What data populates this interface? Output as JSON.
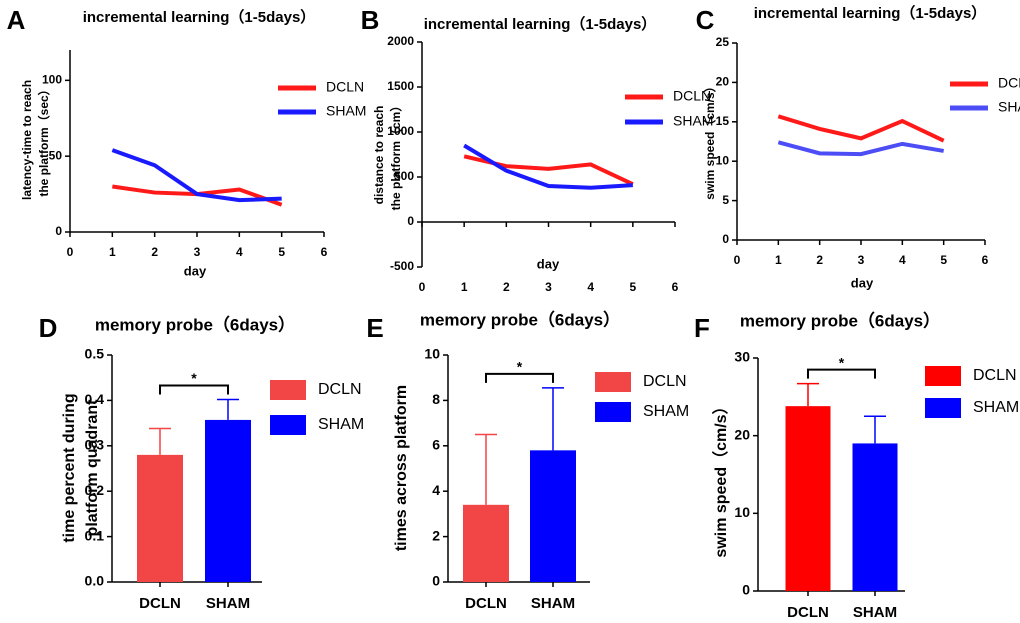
{
  "chart_data": [
    {
      "panel": "A",
      "type": "line",
      "title": "incremental learning（1-5days）",
      "xlabel": "day",
      "ylabel": [
        "latency-time to reach",
        "the platform（sec）"
      ],
      "x": [
        1,
        2,
        3,
        4,
        5
      ],
      "xlim": [
        0,
        6
      ],
      "xticks": [
        0,
        1,
        2,
        3,
        4,
        5,
        6
      ],
      "ylim": [
        0,
        120
      ],
      "yticks": [
        0,
        50,
        100
      ],
      "series": [
        {
          "name": "DCLN",
          "color": "#ff1a1a",
          "values": [
            30,
            26,
            25,
            28,
            18
          ]
        },
        {
          "name": "SHAM",
          "color": "#1a1aff",
          "values": [
            54,
            44,
            25,
            21,
            22
          ]
        }
      ]
    },
    {
      "panel": "B",
      "type": "line",
      "title": "incremental learning（1-5days）",
      "xlabel": "day",
      "ylabel": [
        "distance to reach",
        "the platform（cm）"
      ],
      "x": [
        1,
        2,
        3,
        4,
        5
      ],
      "xlim": [
        0,
        6
      ],
      "xticks": [
        0,
        1,
        2,
        3,
        4,
        5,
        6
      ],
      "ylim": [
        -500,
        2000
      ],
      "yticks": [
        -500,
        0,
        500,
        1000,
        1500,
        2000
      ],
      "series": [
        {
          "name": "DCLN",
          "color": "#ff1a1a",
          "values": [
            730,
            620,
            590,
            640,
            420
          ]
        },
        {
          "name": "SHAM",
          "color": "#1a1aff",
          "values": [
            850,
            570,
            400,
            380,
            410
          ]
        }
      ]
    },
    {
      "panel": "C",
      "type": "line",
      "title": "incremental learning（1-5days）",
      "xlabel": "day",
      "ylabel": [
        "swim speed（cm/s）"
      ],
      "x": [
        1,
        2,
        3,
        4,
        5
      ],
      "xlim": [
        0,
        6
      ],
      "xticks": [
        0,
        1,
        2,
        3,
        4,
        5,
        6
      ],
      "ylim": [
        0,
        25
      ],
      "yticks": [
        0,
        5,
        10,
        15,
        20,
        25
      ],
      "series": [
        {
          "name": "DCLN",
          "color": "#ff1a1a",
          "values": [
            15.7,
            14.1,
            12.9,
            15.1,
            12.6
          ]
        },
        {
          "name": "SHAM",
          "color": "#4d4df5",
          "values": [
            12.4,
            11.0,
            10.9,
            12.2,
            11.3
          ]
        }
      ]
    },
    {
      "panel": "D",
      "type": "bar",
      "title": "memory probe（6days）",
      "ylabel": [
        "time percent during",
        "platform quadrant"
      ],
      "categories": [
        "DCLN",
        "SHAM"
      ],
      "values": [
        0.28,
        0.357
      ],
      "errors": [
        0.058,
        0.045
      ],
      "colors": [
        "#f24545",
        "#0000ff"
      ],
      "annotation": "*",
      "ylim": [
        0,
        0.5
      ],
      "yticks": [
        {
          "value": 0,
          "label": "0.0"
        },
        0.1,
        0.2,
        0.3,
        0.4,
        0.5
      ]
    },
    {
      "panel": "E",
      "type": "bar",
      "title": "memory probe（6days）",
      "ylabel": [
        "times across platform"
      ],
      "categories": [
        "DCLN",
        "SHAM"
      ],
      "values": [
        3.4,
        5.8
      ],
      "errors": [
        3.1,
        2.75
      ],
      "colors": [
        "#f24545",
        "#0000ff"
      ],
      "annotation": "*",
      "ylim": [
        0,
        10
      ],
      "yticks": [
        0,
        2,
        4,
        6,
        8,
        10
      ]
    },
    {
      "panel": "F",
      "type": "bar",
      "title": "memory probe（6days）",
      "ylabel": [
        "swim speed（cm/s）"
      ],
      "categories": [
        "DCLN",
        "SHAM"
      ],
      "values": [
        23.8,
        19.0
      ],
      "errors": [
        2.9,
        3.5
      ],
      "colors": [
        "#ff0000",
        "#0000ff"
      ],
      "annotation": "*",
      "ylim": [
        0,
        30
      ],
      "yticks": [
        0,
        10,
        20,
        30
      ]
    }
  ]
}
